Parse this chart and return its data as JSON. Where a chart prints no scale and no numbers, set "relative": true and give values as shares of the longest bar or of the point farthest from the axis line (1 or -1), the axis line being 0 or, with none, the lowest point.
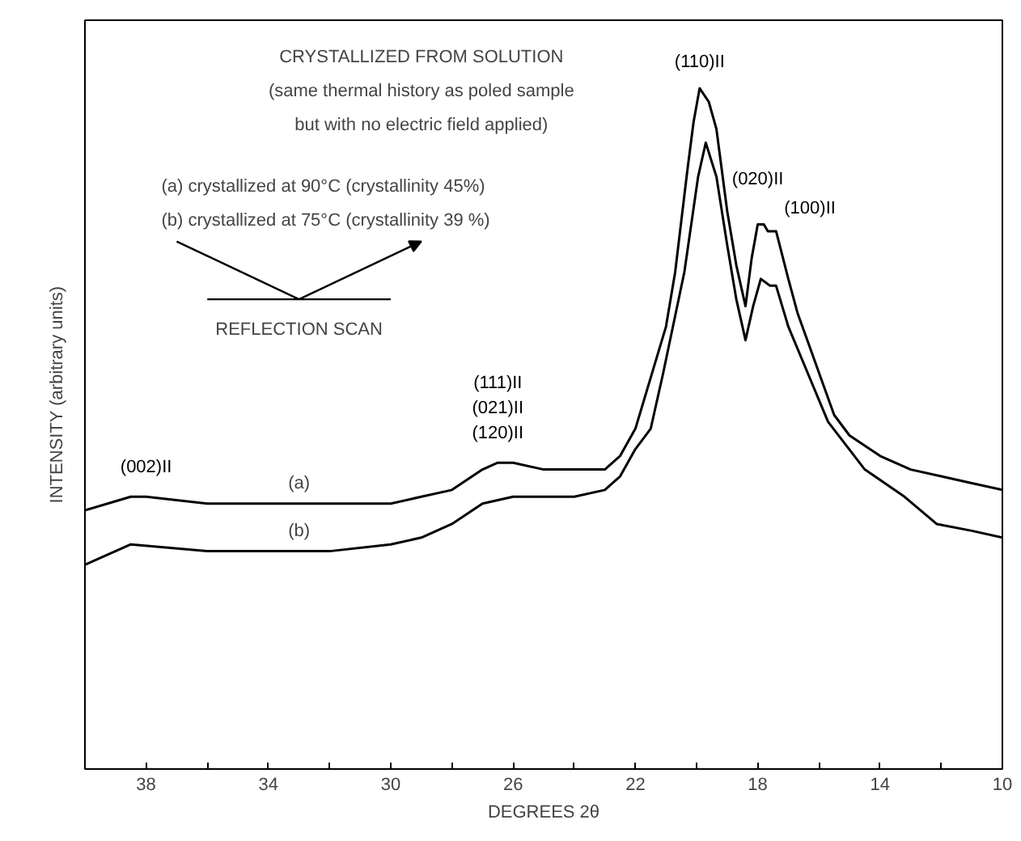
{
  "chart_data": {
    "type": "line",
    "relative": true,
    "title": "CRYSTALLIZED FROM SOLUTION",
    "xlabel": "DEGREES 2θ",
    "ylabel": "INTENSITY (arbitrary units)",
    "xlim": [
      40,
      10
    ],
    "xticks": [
      {
        "value": 38,
        "label": "38"
      },
      {
        "value": 36,
        "label": null
      },
      {
        "value": 34,
        "label": "34"
      },
      {
        "value": 32,
        "label": null
      },
      {
        "value": 30,
        "label": "30"
      },
      {
        "value": 28,
        "label": null
      },
      {
        "value": 26,
        "label": "26"
      },
      {
        "value": 24,
        "label": null
      },
      {
        "value": 22,
        "label": "22"
      },
      {
        "value": 20,
        "label": null
      },
      {
        "value": 18,
        "label": "18"
      },
      {
        "value": 16,
        "label": null
      },
      {
        "value": 14,
        "label": "14"
      },
      {
        "value": 12,
        "label": null
      },
      {
        "value": 10,
        "label": "10"
      }
    ],
    "grid": false,
    "marker": "none",
    "line_style": "solid",
    "series": [
      {
        "name": "(a)",
        "color": "#000000",
        "x": [
          40,
          38.5,
          38,
          36,
          34,
          32,
          30,
          29,
          28,
          27,
          26.5,
          26,
          25,
          24,
          23,
          22.5,
          22,
          21.6,
          21,
          20.7,
          20.3,
          20.1,
          19.9,
          19.6,
          19.35,
          19,
          18.7,
          18.4,
          18.2,
          18.0,
          17.8,
          17.67,
          17.5,
          17.4,
          17,
          16.7,
          16.3,
          15.9,
          15.5,
          15,
          14,
          13,
          12,
          11,
          10
        ],
        "values": [
          0.38,
          0.4,
          0.4,
          0.39,
          0.39,
          0.39,
          0.39,
          0.4,
          0.41,
          0.44,
          0.45,
          0.45,
          0.44,
          0.44,
          0.44,
          0.46,
          0.5,
          0.56,
          0.65,
          0.73,
          0.88,
          0.95,
          1.0,
          0.98,
          0.94,
          0.82,
          0.74,
          0.68,
          0.75,
          0.8,
          0.8,
          0.79,
          0.79,
          0.79,
          0.72,
          0.67,
          0.62,
          0.57,
          0.52,
          0.49,
          0.46,
          0.44,
          0.43,
          0.42,
          0.41
        ]
      },
      {
        "name": "(b)",
        "color": "#000000",
        "x": [
          40,
          38.5,
          36,
          32,
          30,
          29,
          28,
          27,
          26,
          24,
          23,
          22.5,
          22,
          21.5,
          21.1,
          20.4,
          19.95,
          19.7,
          19.35,
          19,
          18.7,
          18.4,
          18.15,
          17.9,
          17.6,
          17.4,
          17,
          16.35,
          15.7,
          14.5,
          13.2,
          12.15,
          11,
          10
        ],
        "values": [
          0.3,
          0.33,
          0.32,
          0.32,
          0.33,
          0.34,
          0.36,
          0.39,
          0.4,
          0.4,
          0.41,
          0.43,
          0.47,
          0.5,
          0.58,
          0.73,
          0.87,
          0.92,
          0.87,
          0.77,
          0.69,
          0.63,
          0.68,
          0.72,
          0.71,
          0.71,
          0.65,
          0.58,
          0.51,
          0.44,
          0.4,
          0.36,
          0.35,
          0.34
        ]
      }
    ],
    "annotations": [
      "(same thermal history as poled sample",
      "but with no electric field applied)",
      "(a) crystallized at 90°C (crystallinity 45%)",
      "(b) crystallized at 75°C (crystallinity 39 %)",
      "REFLECTION SCAN",
      {
        "text": "(002)II",
        "x": 38,
        "y": 0.4
      },
      {
        "text": "(111)II\n(021)II\n(120)II",
        "x": 26.5,
        "y": 0.45
      },
      {
        "text": "(110)II",
        "x": 19.9,
        "y": 1.0
      },
      {
        "text": "(020)II",
        "x": 18.0,
        "y": 0.8
      },
      {
        "text": "(100)II",
        "x": 17.4,
        "y": 0.79
      }
    ]
  }
}
